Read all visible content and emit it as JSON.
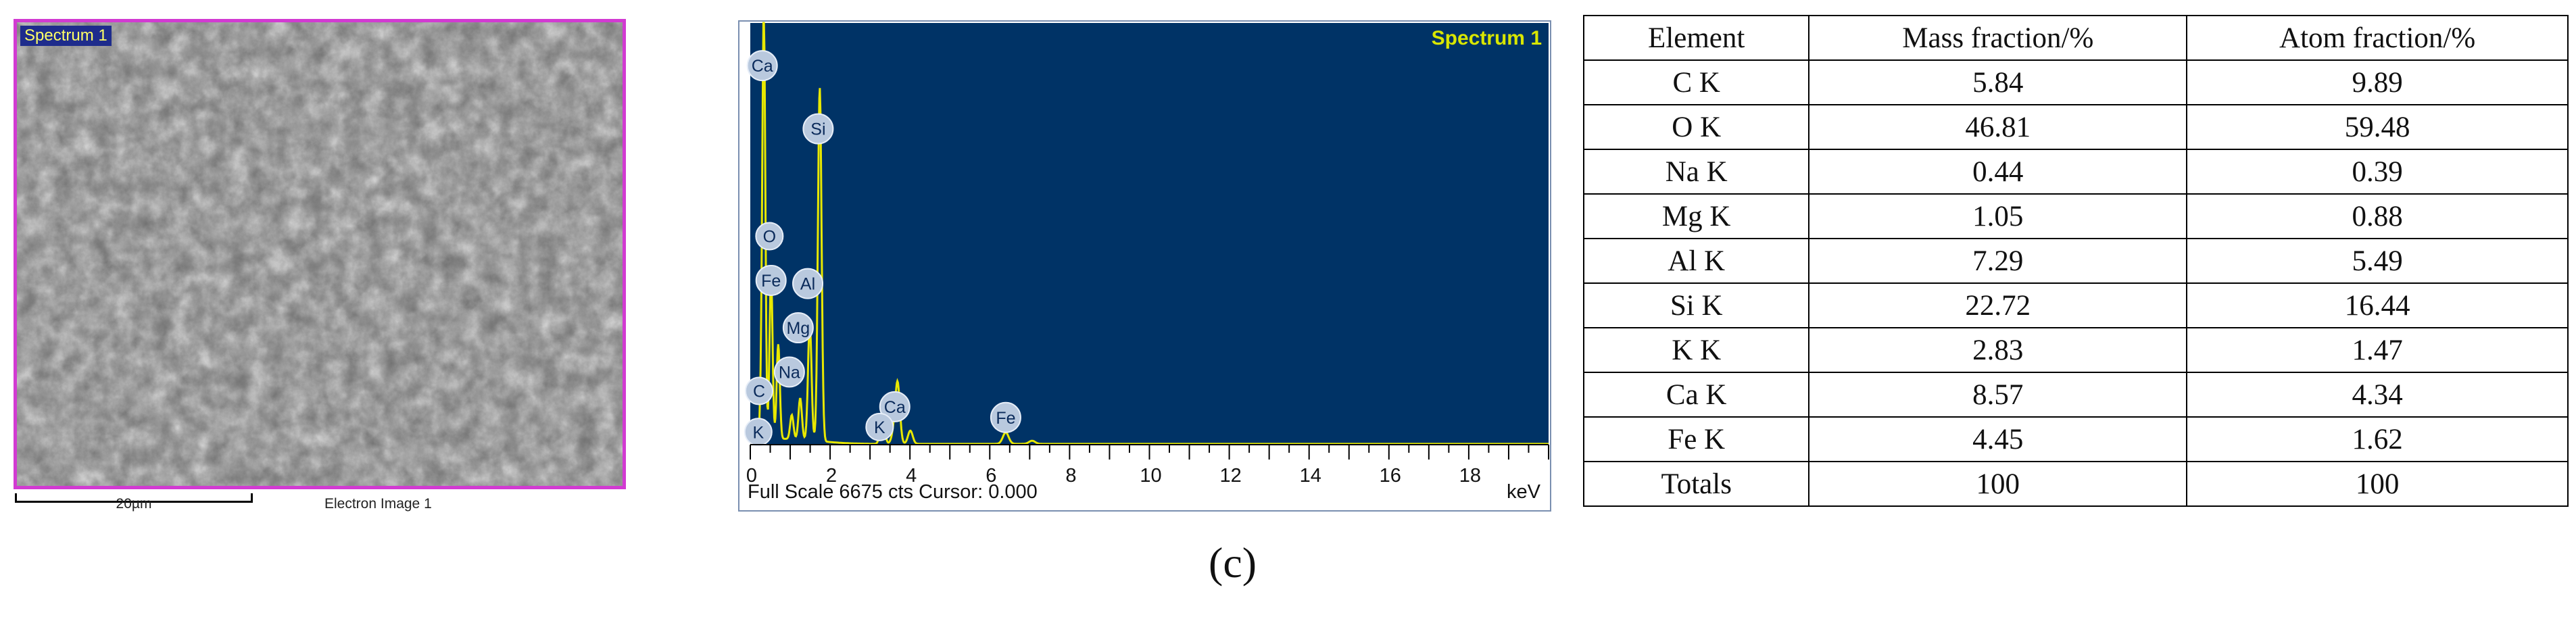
{
  "sem": {
    "tag": "Spectrum 1",
    "scale_label": "20µm",
    "caption": "Electron Image 1"
  },
  "chart_data": [
    {
      "type": "line",
      "title": "Spectrum 1",
      "xlabel": "keV",
      "footer": "Full Scale 6675 cts Cursor: 0.000",
      "xlim": [
        0,
        20
      ],
      "x_ticks": [
        0,
        2,
        4,
        6,
        8,
        10,
        12,
        14,
        16,
        18
      ],
      "ylim": [
        0,
        6675
      ],
      "grid": false,
      "background": "#003366",
      "trace_color": "#e8e800",
      "peaks": [
        {
          "label": "Ca",
          "x": 0.34,
          "y": 6675
        },
        {
          "label": "C",
          "x": 0.28,
          "y": 700
        },
        {
          "label": "O",
          "x": 0.52,
          "y": 2600
        },
        {
          "label": "Fe",
          "x": 0.7,
          "y": 1500
        },
        {
          "label": "Na",
          "x": 1.04,
          "y": 380
        },
        {
          "label": "Mg",
          "x": 1.25,
          "y": 650
        },
        {
          "label": "Al",
          "x": 1.49,
          "y": 1850
        },
        {
          "label": "Si",
          "x": 1.74,
          "y": 5600
        },
        {
          "label": "K",
          "x": 3.31,
          "y": 420
        },
        {
          "label": "Ca",
          "x": 3.69,
          "y": 960
        },
        {
          "label": "K",
          "x": 3.59,
          "y": 150
        },
        {
          "label": "Ca",
          "x": 4.01,
          "y": 210
        },
        {
          "label": "Fe",
          "x": 6.4,
          "y": 180
        },
        {
          "label": "Fe",
          "x": 7.06,
          "y": 50
        }
      ],
      "callouts": [
        {
          "label": "Ca",
          "x": 0.3,
          "y": 6000
        },
        {
          "label": "Si",
          "x": 1.7,
          "y": 5000
        },
        {
          "label": "O",
          "x": 0.48,
          "y": 3300
        },
        {
          "label": "Fe",
          "x": 0.52,
          "y": 2600
        },
        {
          "label": "Al",
          "x": 1.44,
          "y": 2550
        },
        {
          "label": "Mg",
          "x": 1.2,
          "y": 1850
        },
        {
          "label": "Na",
          "x": 0.98,
          "y": 1150
        },
        {
          "label": "C",
          "x": 0.22,
          "y": 850
        },
        {
          "label": "K",
          "x": 0.2,
          "y": 200
        },
        {
          "label": "Ca",
          "x": 3.62,
          "y": 600
        },
        {
          "label": "K",
          "x": 3.24,
          "y": 280
        },
        {
          "label": "Fe",
          "x": 6.4,
          "y": 430
        }
      ]
    },
    {
      "type": "table",
      "columns": [
        "Element",
        "Mass fraction/%",
        "Atom fraction/%"
      ],
      "rows": [
        [
          "C K",
          "5.84",
          "9.89"
        ],
        [
          "O K",
          "46.81",
          "59.48"
        ],
        [
          "Na K",
          "0.44",
          "0.39"
        ],
        [
          "Mg K",
          "1.05",
          "0.88"
        ],
        [
          "Al K",
          "7.29",
          "5.49"
        ],
        [
          "Si K",
          "22.72",
          "16.44"
        ],
        [
          "K K",
          "2.83",
          "1.47"
        ],
        [
          "Ca K",
          "8.57",
          "4.34"
        ],
        [
          "Fe K",
          "4.45",
          "1.62"
        ],
        [
          "Totals",
          "100",
          "100"
        ]
      ]
    }
  ],
  "panel_label": "(c)"
}
